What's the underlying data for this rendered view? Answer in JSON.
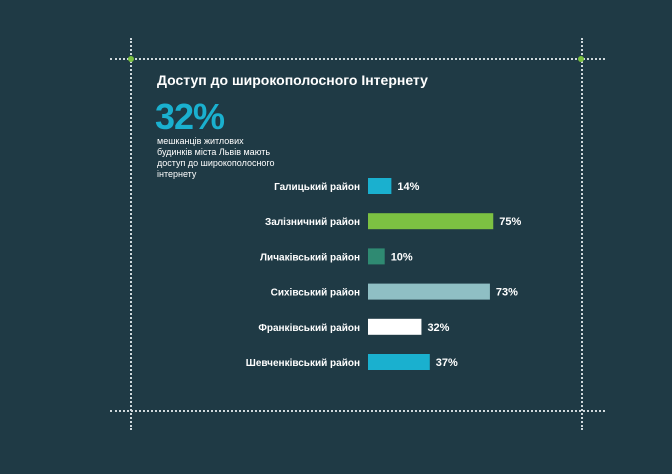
{
  "title": "Доступ до широкополосного Інтернету",
  "headline": {
    "value": "32%",
    "description": "мешканців житлових будинків міста Львів мають доступ до широкополосного інтернету"
  },
  "colors": {
    "background": "#1f3a45",
    "accent_blue": "#1ab0cf",
    "accent_green": "#7cc142"
  },
  "chart_data": {
    "type": "bar",
    "orientation": "horizontal",
    "categories": [
      "Галицький район",
      "Залізничний район",
      "Личаківський район",
      "Сихівський район",
      "Франківський район",
      "Шевченківський район"
    ],
    "values": [
      14,
      75,
      10,
      73,
      32,
      37
    ],
    "value_labels": [
      "14%",
      "75%",
      "10%",
      "73%",
      "32%",
      "37%"
    ],
    "colors": [
      "#1ab0cf",
      "#7cc142",
      "#2f8a72",
      "#8fbfc4",
      "#ffffff",
      "#1ab0cf"
    ],
    "xlim": [
      0,
      100
    ],
    "grid": false
  }
}
